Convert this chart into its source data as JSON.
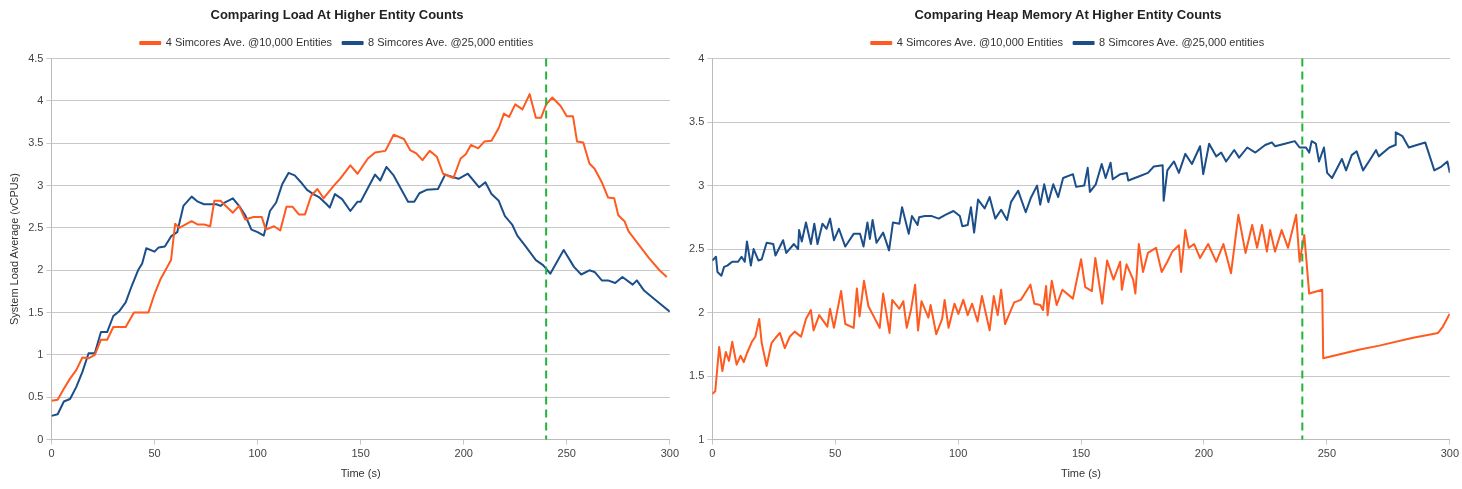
{
  "chart_data": [
    {
      "type": "line",
      "title": "Comparing Load At Higher Entity Counts",
      "xlabel": "Time (s)",
      "ylabel": "System Load Average (vCPUs)",
      "legend": "top",
      "grid": "y",
      "marker": "none",
      "line_style": "solid",
      "xlim": [
        0,
        300
      ],
      "xticks": [
        0,
        50,
        100,
        150,
        200,
        250,
        300
      ],
      "ylim": [
        0,
        4.5
      ],
      "yticks": [
        0,
        0.5,
        1,
        1.5,
        2,
        2.5,
        3,
        3.5,
        4,
        4.5
      ],
      "ref_lines": [
        {
          "axis": "x",
          "value": 240,
          "label": null,
          "color": "#22b33a",
          "line_style": "dashed"
        }
      ],
      "series": [
        {
          "name": "4 Simcores Ave. @10,000 Entities",
          "color": "#ff5a1f",
          "x": [
            0,
            3,
            6,
            9,
            12,
            15,
            18,
            21,
            24,
            27,
            30,
            36,
            40,
            47,
            50,
            53,
            58,
            60,
            62,
            68,
            71,
            74,
            77,
            79,
            82,
            85,
            88,
            91,
            94,
            98,
            102,
            104,
            108,
            111,
            114,
            117,
            120,
            123,
            126,
            129,
            132,
            137,
            140,
            145,
            148.5,
            153.5,
            157,
            162,
            166,
            171,
            174,
            177,
            180,
            183.5,
            187,
            190,
            195,
            198.5,
            201,
            203.5,
            207,
            210,
            213.5,
            217,
            219.5,
            222,
            225,
            228.5,
            232,
            235,
            237.5,
            240,
            243,
            247,
            250,
            253,
            255,
            258,
            261,
            263.5,
            267,
            270,
            273,
            275,
            278,
            280,
            285,
            290,
            295,
            298.5
          ],
          "values": [
            0.46,
            0.47,
            0.6,
            0.72,
            0.82,
            0.97,
            0.96,
            1.0,
            1.18,
            1.18,
            1.33,
            1.33,
            1.5,
            1.5,
            1.72,
            1.9,
            2.12,
            2.55,
            2.5,
            2.58,
            2.54,
            2.54,
            2.52,
            2.82,
            2.82,
            2.75,
            2.68,
            2.76,
            2.6,
            2.63,
            2.63,
            2.48,
            2.52,
            2.47,
            2.75,
            2.75,
            2.66,
            2.66,
            2.88,
            2.96,
            2.85,
            3.0,
            3.08,
            3.24,
            3.14,
            3.32,
            3.39,
            3.41,
            3.6,
            3.55,
            3.42,
            3.38,
            3.3,
            3.41,
            3.34,
            3.14,
            3.09,
            3.32,
            3.37,
            3.48,
            3.44,
            3.52,
            3.53,
            3.68,
            3.85,
            3.81,
            3.96,
            3.9,
            4.08,
            3.8,
            3.8,
            3.96,
            4.04,
            3.94,
            3.82,
            3.82,
            3.52,
            3.51,
            3.26,
            3.2,
            3.04,
            2.86,
            2.85,
            2.65,
            2.58,
            2.46,
            2.3,
            2.14,
            2.0,
            1.92
          ]
        },
        {
          "name": "8 Simcores Ave. @25,000 entities",
          "color": "#1c4f8a",
          "x": [
            0,
            3,
            6,
            9,
            12,
            15,
            18,
            21,
            24,
            27,
            30,
            33,
            36,
            39,
            42,
            44,
            46,
            50,
            52,
            55,
            58,
            61,
            64,
            68,
            71,
            74,
            80,
            82,
            84,
            88,
            91,
            94,
            97,
            100,
            103,
            106,
            109,
            112,
            115,
            118,
            121,
            124,
            127,
            130,
            133.5,
            135,
            137.5,
            141,
            145,
            148.5,
            150,
            157,
            159.5,
            162.5,
            166,
            173,
            176,
            178.5,
            182,
            187.5,
            191,
            197.5,
            202,
            207.5,
            210.5,
            213.5,
            217,
            220,
            223.5,
            226,
            229.5,
            235,
            238.5,
            242,
            248.5,
            253.5,
            257,
            261,
            263.5,
            267,
            270,
            273.5,
            277,
            282,
            284,
            287.5,
            293.5,
            300
          ],
          "values": [
            0.28,
            0.3,
            0.45,
            0.48,
            0.62,
            0.8,
            1.02,
            1.02,
            1.27,
            1.27,
            1.46,
            1.52,
            1.62,
            1.82,
            2.0,
            2.08,
            2.26,
            2.22,
            2.27,
            2.28,
            2.4,
            2.45,
            2.76,
            2.87,
            2.81,
            2.78,
            2.78,
            2.76,
            2.8,
            2.85,
            2.76,
            2.65,
            2.48,
            2.45,
            2.41,
            2.7,
            2.8,
            3.02,
            3.15,
            3.12,
            3.04,
            2.95,
            2.9,
            2.86,
            2.78,
            2.74,
            2.9,
            2.84,
            2.7,
            2.81,
            2.81,
            3.13,
            3.06,
            3.22,
            3.12,
            2.81,
            2.81,
            2.91,
            2.95,
            2.96,
            3.13,
            3.08,
            3.14,
            2.98,
            3.04,
            2.9,
            2.82,
            2.64,
            2.54,
            2.41,
            2.3,
            2.12,
            2.06,
            1.96,
            2.24,
            2.04,
            1.95,
            2.0,
            1.98,
            1.88,
            1.88,
            1.85,
            1.92,
            1.83,
            1.88,
            1.76,
            1.64,
            1.51
          ]
        }
      ]
    },
    {
      "type": "line",
      "title": "Comparing Heap Memory At Higher Entity Counts",
      "xlabel": "Time (s)",
      "legend": "top",
      "grid": "y",
      "marker": "none",
      "line_style": "solid",
      "xlim": [
        0,
        300
      ],
      "xticks": [
        0,
        50,
        100,
        150,
        200,
        250,
        300
      ],
      "ylim": [
        1,
        4
      ],
      "yticks": [
        1,
        1.5,
        2,
        2.5,
        3,
        3.5,
        4
      ],
      "ref_lines": [
        {
          "axis": "x",
          "value": 240,
          "label": null,
          "color": "#22b33a",
          "line_style": "dashed"
        }
      ],
      "series": [
        {
          "name": "4 Simcores Ave. @10,000 Entities",
          "color": "#ff5a1f",
          "x": [
            0,
            1.2,
            2.8,
            4.1,
            5.5,
            6.8,
            8.1,
            9.9,
            11.5,
            12.8,
            14.1,
            16.1,
            17.5,
            19.1,
            20.1,
            22.1,
            24.1,
            25.7,
            27.5,
            29.5,
            31.5,
            33.5,
            36.1,
            38.1,
            40.1,
            41.2,
            43.5,
            46.8,
            47.9,
            49.5,
            52.4,
            54.1,
            57.5,
            58.8,
            59.9,
            61.7,
            63.5,
            68.1,
            69.5,
            72.1,
            73.2,
            76.1,
            77.7,
            79.1,
            80.8,
            82.5,
            83.7,
            85.1,
            87.9,
            88.8,
            91.1,
            93.5,
            94.5,
            96.1,
            98.5,
            100.1,
            102.1,
            103.9,
            105.7,
            107.9,
            109.7,
            112.8,
            114.5,
            116.1,
            117.5,
            119.1,
            122.8,
            125.5,
            129.4,
            131,
            133.4,
            134.5,
            135.8,
            136.4,
            138.1,
            140.1,
            142.4,
            146.7,
            150,
            151.7,
            154.4,
            155.8,
            158.6,
            160.6,
            163.2,
            165.9,
            166.6,
            168.5,
            171.2,
            172.1,
            173.5,
            175.2,
            177.2,
            180.5,
            182.8,
            185.1,
            187.1,
            189.8,
            190.7,
            192.4,
            193.8,
            196,
            198.4,
            201.7,
            205,
            207.9,
            211,
            214,
            216.9,
            219.6,
            221.6,
            223.6,
            225.6,
            226.9,
            228.9,
            231.6,
            234.2,
            237.5,
            238.9,
            240.8,
            242.8,
            248.1,
            248.5,
            263.4,
            271.3,
            284.6,
            295.2,
            297.2,
            299.9
          ],
          "values": [
            1.36,
            1.38,
            1.73,
            1.54,
            1.69,
            1.62,
            1.77,
            1.59,
            1.66,
            1.61,
            1.68,
            1.77,
            1.81,
            1.95,
            1.76,
            1.58,
            1.76,
            1.8,
            1.84,
            1.72,
            1.81,
            1.85,
            1.81,
            1.95,
            2.02,
            1.86,
            1.98,
            1.89,
            2.03,
            1.88,
            2.17,
            1.91,
            1.88,
            2.19,
            1.97,
            2.25,
            2.05,
            1.88,
            2.15,
            1.84,
            2.1,
            2.03,
            2.09,
            1.88,
            2.02,
            2.22,
            1.86,
            2.09,
            1.96,
            2.06,
            1.83,
            1.95,
            2.1,
            1.88,
            2.07,
            1.99,
            2.1,
            1.98,
            2.07,
            1.93,
            2.13,
            1.86,
            2.13,
            1.98,
            2.18,
            1.91,
            2.08,
            2.1,
            2.22,
            2.07,
            2.06,
            2.02,
            2.21,
            1.98,
            2.25,
            2.06,
            2.18,
            2.11,
            2.42,
            2.2,
            2.17,
            2.43,
            2.07,
            2.41,
            2.26,
            2.4,
            2.18,
            2.38,
            2.26,
            2.15,
            2.54,
            2.32,
            2.47,
            2.51,
            2.32,
            2.4,
            2.48,
            2.53,
            2.32,
            2.65,
            2.51,
            2.54,
            2.43,
            2.54,
            2.4,
            2.54,
            2.31,
            2.77,
            2.47,
            2.69,
            2.51,
            2.69,
            2.48,
            2.65,
            2.48,
            2.65,
            2.51,
            2.77,
            2.4,
            2.61,
            2.15,
            2.18,
            1.64,
            1.71,
            1.74,
            1.8,
            1.84,
            1.89,
            1.99
          ]
        },
        {
          "name": "8 Simcores Ave. @25,000 entities",
          "color": "#1c4f8a",
          "x": [
            0,
            1.5,
            2.1,
            3.7,
            4.8,
            6.1,
            8.1,
            10.5,
            11.9,
            13.2,
            14.1,
            15.7,
            16.8,
            18.8,
            20.1,
            22.1,
            24.8,
            25.7,
            28.8,
            30.1,
            33.2,
            34.9,
            35.3,
            36.4,
            38.1,
            40.1,
            41.5,
            42.8,
            44.8,
            46.5,
            47.9,
            49.5,
            51.5,
            54.1,
            57.5,
            60.1,
            61.5,
            63.1,
            64.1,
            65.2,
            66.8,
            69.5,
            71.9,
            73.5,
            76.1,
            77.2,
            79.9,
            81.2,
            83.5,
            84.1,
            86.5,
            89.3,
            92.1,
            94.8,
            98.1,
            100.7,
            101.7,
            103.9,
            105.2,
            106.5,
            108.1,
            110.8,
            112.8,
            115.1,
            117.5,
            119.9,
            121.5,
            124.4,
            127.5,
            129.5,
            132.1,
            133.4,
            135,
            136.7,
            138.7,
            140.7,
            142.7,
            146.7,
            148,
            151.3,
            152.7,
            153.6,
            156,
            158.4,
            160,
            162,
            162.9,
            166,
            168.6,
            169.2,
            173.2,
            177.2,
            179.6,
            183.2,
            183.6,
            185.1,
            187.8,
            189.8,
            192.4,
            195.1,
            198.4,
            199.7,
            202.1,
            205,
            207,
            209,
            212.3,
            214.3,
            217.6,
            220.9,
            224.9,
            227.6,
            228.9,
            232.9,
            236.9,
            238.9,
            241.5,
            242.8,
            243.8,
            245.5,
            246.8,
            248.8,
            250.1,
            252.1,
            256.1,
            257.8,
            260.1,
            262.1,
            264.7,
            267.4,
            270,
            271.1,
            275.4,
            277.8,
            278,
            280.7,
            283.3,
            286.6,
            290,
            293.7,
            296.6,
            299,
            300
          ],
          "values": [
            2.41,
            2.44,
            2.32,
            2.29,
            2.36,
            2.37,
            2.4,
            2.4,
            2.44,
            2.4,
            2.56,
            2.37,
            2.5,
            2.41,
            2.42,
            2.55,
            2.54,
            2.45,
            2.57,
            2.47,
            2.54,
            2.5,
            2.65,
            2.56,
            2.71,
            2.54,
            2.7,
            2.54,
            2.7,
            2.66,
            2.74,
            2.57,
            2.66,
            2.52,
            2.62,
            2.62,
            2.52,
            2.71,
            2.58,
            2.73,
            2.55,
            2.63,
            2.49,
            2.71,
            2.7,
            2.83,
            2.62,
            2.76,
            2.69,
            2.75,
            2.76,
            2.76,
            2.74,
            2.77,
            2.8,
            2.76,
            2.68,
            2.69,
            2.83,
            2.63,
            2.89,
            2.82,
            2.91,
            2.74,
            2.81,
            2.73,
            2.87,
            2.96,
            2.79,
            2.9,
            3.0,
            2.85,
            3.01,
            2.87,
            3.01,
            2.91,
            3.06,
            3.09,
            2.99,
            3.0,
            3.14,
            2.95,
            3.01,
            3.17,
            3.06,
            3.18,
            3.05,
            3.09,
            3.1,
            3.04,
            3.07,
            3.1,
            3.15,
            3.16,
            2.88,
            3.12,
            3.19,
            3.1,
            3.25,
            3.17,
            3.31,
            3.09,
            3.33,
            3.23,
            3.26,
            3.19,
            3.28,
            3.22,
            3.3,
            3.26,
            3.32,
            3.34,
            3.31,
            3.33,
            3.35,
            3.3,
            3.3,
            3.26,
            3.35,
            3.33,
            3.19,
            3.3,
            3.1,
            3.06,
            3.21,
            3.12,
            3.24,
            3.27,
            3.12,
            3.2,
            3.28,
            3.23,
            3.3,
            3.32,
            3.42,
            3.39,
            3.3,
            3.32,
            3.34,
            3.12,
            3.15,
            3.19,
            3.1
          ]
        }
      ]
    }
  ]
}
